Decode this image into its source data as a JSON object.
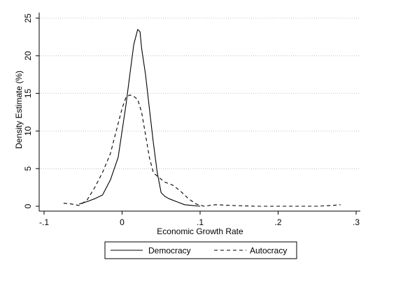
{
  "chart_data": {
    "type": "line",
    "title": "",
    "xlabel": "Economic Growth Rate",
    "ylabel": "Density Estimate (%)",
    "xlim": [
      -0.1,
      0.3
    ],
    "ylim": [
      0,
      25
    ],
    "x_ticks": [
      -0.1,
      0,
      0.1,
      0.2,
      0.3
    ],
    "x_tick_labels": [
      "-.1",
      "0",
      ".1",
      ".2",
      ".3"
    ],
    "y_ticks": [
      0,
      5,
      10,
      15,
      20,
      25
    ],
    "y_tick_labels": [
      "0",
      "5",
      "10",
      "15",
      "20",
      "25"
    ],
    "grid": "horizontal dotted at 5, 10, 15, 20",
    "legend_position": "bottom",
    "series": [
      {
        "name": "Democracy",
        "style": "solid",
        "color": "#000000",
        "x": [
          -0.055,
          -0.045,
          -0.035,
          -0.025,
          -0.015,
          -0.005,
          0.0,
          0.005,
          0.01,
          0.015,
          0.02,
          0.023,
          0.025,
          0.03,
          0.035,
          0.04,
          0.045,
          0.05,
          0.055,
          0.06,
          0.07,
          0.08,
          0.09,
          0.1
        ],
        "y": [
          0.3,
          0.6,
          1.0,
          1.5,
          3.5,
          6.5,
          10.0,
          13.5,
          17.5,
          21.5,
          23.5,
          23.2,
          21.0,
          17.5,
          13.0,
          8.5,
          4.5,
          1.8,
          1.3,
          1.0,
          0.6,
          0.2,
          0.1,
          0.0
        ]
      },
      {
        "name": "Autocracy",
        "style": "dashed",
        "color": "#000000",
        "x": [
          -0.075,
          -0.065,
          -0.055,
          -0.045,
          -0.035,
          -0.025,
          -0.015,
          -0.005,
          0.0,
          0.005,
          0.01,
          0.015,
          0.02,
          0.025,
          0.03,
          0.035,
          0.04,
          0.045,
          0.055,
          0.065,
          0.075,
          0.085,
          0.095,
          0.105,
          0.12,
          0.14,
          0.17,
          0.2,
          0.25,
          0.27,
          0.28
        ],
        "y": [
          0.4,
          0.3,
          0.1,
          0.8,
          2.5,
          4.5,
          7.0,
          11.0,
          13.0,
          14.5,
          14.8,
          14.6,
          14.2,
          12.5,
          9.5,
          6.5,
          4.5,
          4.0,
          3.2,
          2.8,
          2.0,
          1.0,
          0.3,
          0.0,
          0.2,
          0.1,
          0.0,
          0.0,
          0.0,
          0.1,
          0.2
        ]
      }
    ]
  }
}
